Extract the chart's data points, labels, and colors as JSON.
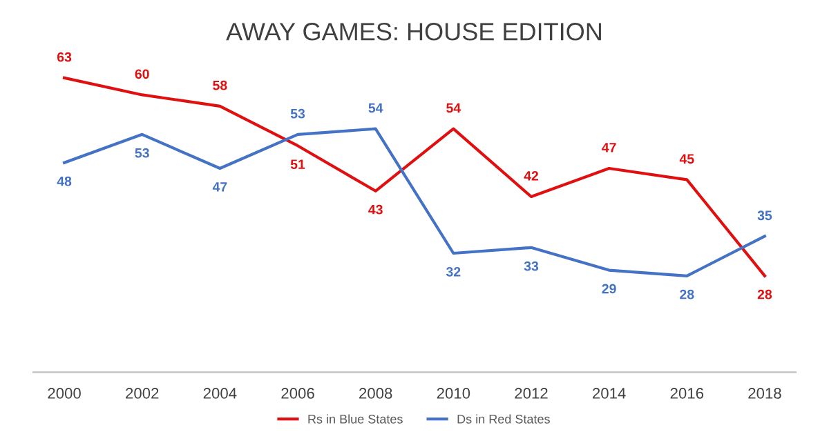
{
  "chart_data": {
    "type": "line",
    "title": "AWAY GAMES: HOUSE EDITION",
    "categories": [
      "2000",
      "2002",
      "2004",
      "2006",
      "2008",
      "2010",
      "2012",
      "2014",
      "2016",
      "2018"
    ],
    "series": [
      {
        "name": "Rs in Blue States",
        "color": "#e01010",
        "values": [
          63,
          60,
          58,
          51,
          43,
          54,
          42,
          47,
          45,
          28
        ]
      },
      {
        "name": "Ds in Red States",
        "color": "#4472c4",
        "values": [
          48,
          53,
          47,
          53,
          54,
          32,
          33,
          29,
          28,
          35
        ]
      }
    ],
    "data_labels": true,
    "legend": "bottom",
    "grid": false,
    "line_style": "solid"
  }
}
